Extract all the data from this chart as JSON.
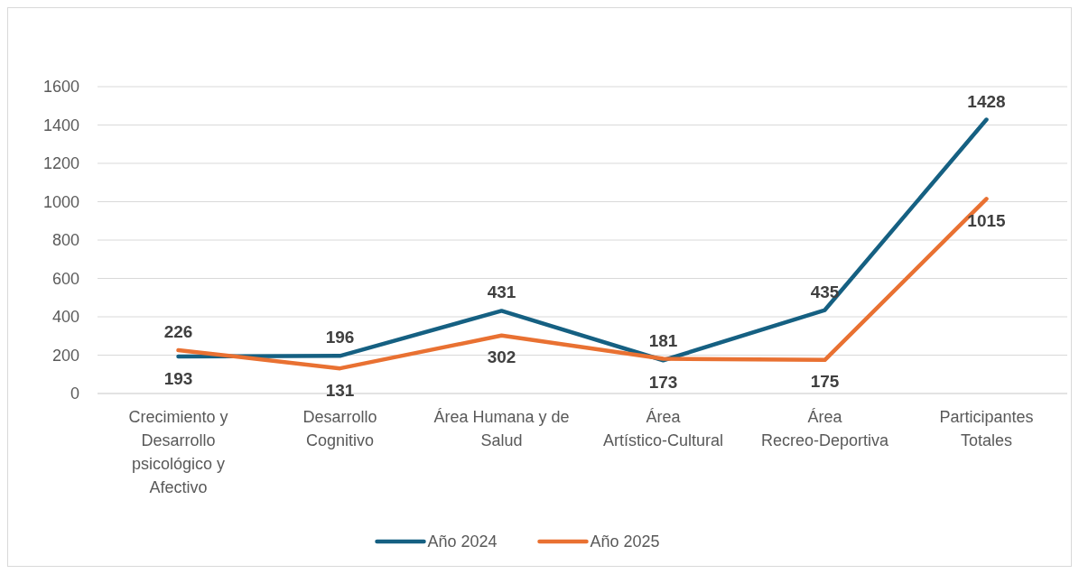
{
  "chart_data": {
    "type": "line",
    "categories": [
      "Crecimiento y Desarrollo psicológico y Afectivo",
      "Desarrollo Cognitivo",
      "Área Humana y de Salud",
      "Área Artístico-Cultural",
      "Área Recreo-Deportiva",
      "Participantes Totales"
    ],
    "series": [
      {
        "name": "Año 2024",
        "color": "#156082",
        "values": [
          193,
          196,
          431,
          173,
          435,
          1428
        ]
      },
      {
        "name": "Año 2025",
        "color": "#e97132",
        "values": [
          226,
          131,
          302,
          181,
          175,
          1015
        ]
      }
    ],
    "ylim": [
      0,
      1600
    ],
    "yticks": [
      0,
      200,
      400,
      600,
      800,
      1000,
      1200,
      1400,
      1600
    ],
    "grid": "y",
    "legend": "bottom",
    "data_labels": true,
    "marker": "none",
    "line_style": "solid"
  }
}
